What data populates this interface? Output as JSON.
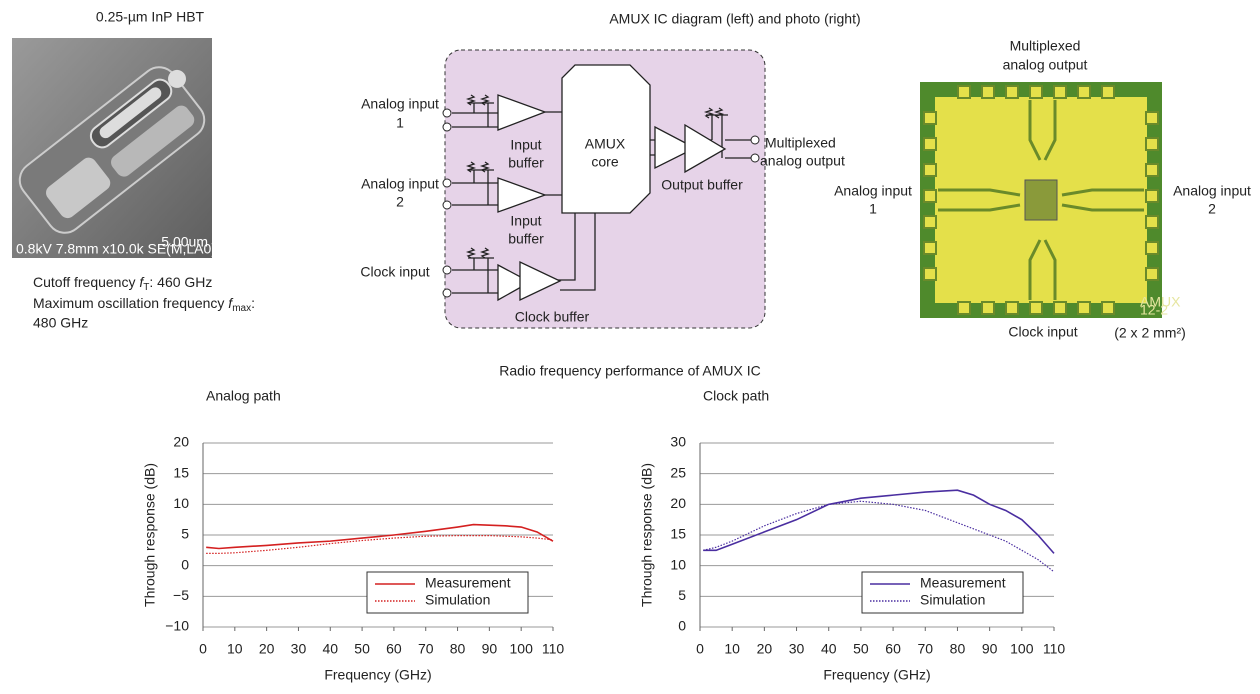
{
  "hbt": {
    "title": "0.25-µm InP HBT",
    "sem_info": "0.8kV 7.8mm x10.0k SE(M,LA0)",
    "sem_scale": "5.00um",
    "cutoff": {
      "label": "Cutoff frequency ",
      "symbol": "f",
      "subscript": "T",
      "value": ": 460 GHz"
    },
    "fmax": {
      "label": "Maximum oscillation frequency ",
      "symbol": "f",
      "subscript": "max",
      "value": ":",
      "line2": "480 GHz"
    }
  },
  "amux": {
    "title": "AMUX IC diagram (left) and photo (right)",
    "diagram": {
      "input_1": [
        "Analog input",
        "1"
      ],
      "input_2": [
        "Analog input",
        "2"
      ],
      "clock_input": "Clock input",
      "input_buffer_1": [
        "Input",
        "buffer"
      ],
      "input_buffer_2": [
        "Input",
        "buffer"
      ],
      "clock_buffer": "Clock buffer",
      "core": [
        "AMUX",
        "core"
      ],
      "output_buffer": "Output buffer",
      "output": [
        "Multiplexed",
        "analog output"
      ]
    },
    "photo": {
      "output": [
        "Multiplexed",
        "analog output"
      ],
      "input_1": [
        "Analog input",
        "1"
      ],
      "input_2": [
        "Analog input",
        "2"
      ],
      "clock_input": "Clock input",
      "size": "(2 x 2 mm²)",
      "chip_label": [
        "AMUX",
        "12-2"
      ]
    }
  },
  "rf_title": "Radio frequency performance of AMUX IC",
  "chart_data": [
    {
      "type": "line",
      "title": "Analog path",
      "x_label": "Frequency (GHz)",
      "y_label": "Through response (dB)",
      "x": [
        1,
        5,
        10,
        20,
        30,
        40,
        50,
        60,
        70,
        80,
        85,
        90,
        95,
        100,
        105,
        110
      ],
      "series": [
        {
          "name": "Measurement",
          "color": "#d42020",
          "line_style": "solid",
          "values": [
            3,
            2.8,
            3,
            3.3,
            3.7,
            4,
            4.5,
            5,
            5.6,
            6.3,
            6.7,
            6.6,
            6.5,
            6.3,
            5.5,
            4
          ]
        },
        {
          "name": "Simulation",
          "color": "#d42020",
          "line_style": "dotted",
          "values": [
            2,
            2,
            2.1,
            2.5,
            3,
            3.6,
            4.1,
            4.5,
            4.8,
            4.9,
            4.9,
            4.9,
            4.8,
            4.7,
            4.5,
            4.2
          ]
        }
      ],
      "xlim": [
        0,
        110
      ],
      "xticks": [
        0,
        10,
        20,
        30,
        40,
        50,
        60,
        70,
        80,
        90,
        100,
        110
      ],
      "ylim": [
        -10,
        20
      ],
      "yticks": [
        {
          "value": -10,
          "label": "−10"
        },
        {
          "value": -5,
          "label": "−5"
        },
        0,
        5,
        10,
        15,
        20
      ],
      "grid": true,
      "legend": "lower right"
    },
    {
      "type": "line",
      "title": "Clock path",
      "x_label": "Frequency (GHz)",
      "y_label": "Through response (dB)",
      "x": [
        1,
        5,
        10,
        20,
        30,
        40,
        50,
        60,
        70,
        80,
        85,
        90,
        95,
        100,
        105,
        110
      ],
      "series": [
        {
          "name": "Measurement",
          "color": "#4a2ea0",
          "line_style": "solid",
          "values": [
            12.5,
            12.5,
            13.5,
            15.5,
            17.5,
            20,
            21,
            21.5,
            22,
            22.3,
            21.5,
            20,
            19,
            17.5,
            15,
            12
          ]
        },
        {
          "name": "Simulation",
          "color": "#4a2ea0",
          "line_style": "dotted",
          "values": [
            12.5,
            13,
            14,
            16.5,
            18.5,
            20,
            20.5,
            20,
            19,
            17,
            16,
            15,
            14,
            12.5,
            11,
            9
          ]
        }
      ],
      "xlim": [
        0,
        110
      ],
      "xticks": [
        0,
        10,
        20,
        30,
        40,
        50,
        60,
        70,
        80,
        90,
        100,
        110
      ],
      "ylim": [
        0,
        30
      ],
      "yticks": [
        0,
        5,
        10,
        15,
        20,
        25,
        30
      ],
      "grid": true,
      "legend": "lower right"
    }
  ]
}
